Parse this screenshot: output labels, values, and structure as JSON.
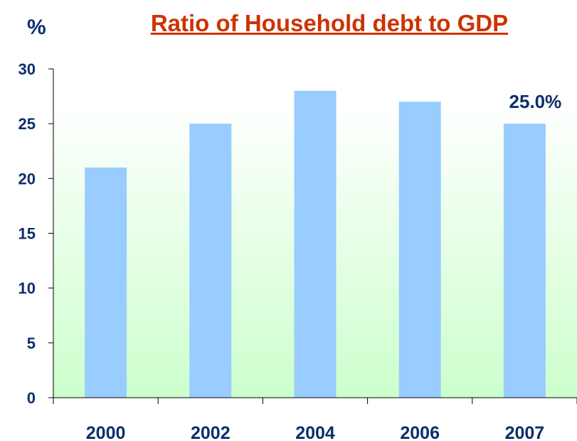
{
  "chart_data": {
    "type": "bar",
    "title": "Ratio of Household debt to GDP",
    "xlabel": "",
    "ylabel": "%",
    "categories": [
      "2000",
      "2002",
      "2004",
      "2006",
      "2007"
    ],
    "values": [
      21,
      25,
      28,
      27,
      25
    ],
    "ylim": [
      0,
      30
    ],
    "yticks": [
      0,
      5,
      10,
      15,
      20,
      25,
      30
    ],
    "grid": false,
    "legend": "none",
    "annotations": [
      {
        "category": "2007",
        "text": "25.0%"
      }
    ],
    "colors": {
      "bar": "#99ccff",
      "title": "#cc3300",
      "text": "#0d2e6e",
      "plot_bg_top": "#ffffff",
      "plot_bg_bottom": "#ccffcc"
    }
  }
}
